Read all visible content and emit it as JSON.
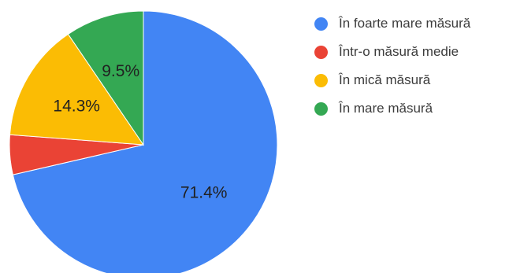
{
  "chart_data": {
    "type": "pie",
    "title": "",
    "slices": [
      {
        "label": "În foarte mare măsură",
        "value": 71.4,
        "display": "71.4%",
        "color": "#4285f4"
      },
      {
        "label": "Într-o măsură medie",
        "value": 4.8,
        "display": "",
        "color": "#ea4335"
      },
      {
        "label": "În mică măsură",
        "value": 14.3,
        "display": "14.3%",
        "color": "#fbbc04"
      },
      {
        "label": "În mare măsură",
        "value": 9.5,
        "display": "9.5%",
        "color": "#34a853"
      }
    ],
    "start_angle": "12 o'clock",
    "direction": "clockwise",
    "legend_position": "right"
  }
}
